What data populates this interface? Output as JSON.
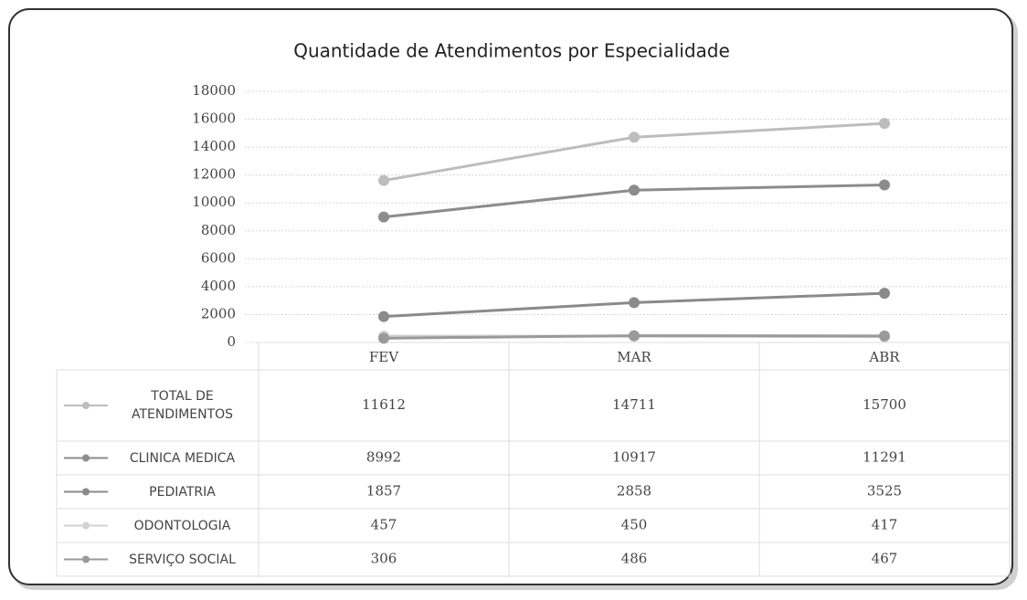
{
  "chart_data": {
    "type": "line",
    "title": "Quantidade de Atendimentos por Especialidade",
    "categories": [
      "FEV",
      "MAR",
      "ABR"
    ],
    "series": [
      {
        "name": "TOTAL DE ATENDIMENTOS",
        "color": "#bdbdbd",
        "values": [
          11612,
          14711,
          15700
        ]
      },
      {
        "name": "CLINICA MEDICA",
        "color": "#8c8c8c",
        "values": [
          8992,
          10917,
          11291
        ]
      },
      {
        "name": "PEDIATRIA",
        "color": "#8a8a8a",
        "values": [
          1857,
          2858,
          3525
        ]
      },
      {
        "name": "ODONTOLOGIA",
        "color": "#d2d2d2",
        "values": [
          457,
          450,
          417
        ]
      },
      {
        "name": "SERVIÇO SOCIAL",
        "color": "#9a9a9a",
        "values": [
          306,
          486,
          467
        ]
      }
    ],
    "ylim": [
      0,
      18000
    ],
    "yticks": [
      0,
      2000,
      4000,
      6000,
      8000,
      10000,
      12000,
      14000,
      16000,
      18000
    ],
    "grid": true,
    "legend": "table"
  }
}
